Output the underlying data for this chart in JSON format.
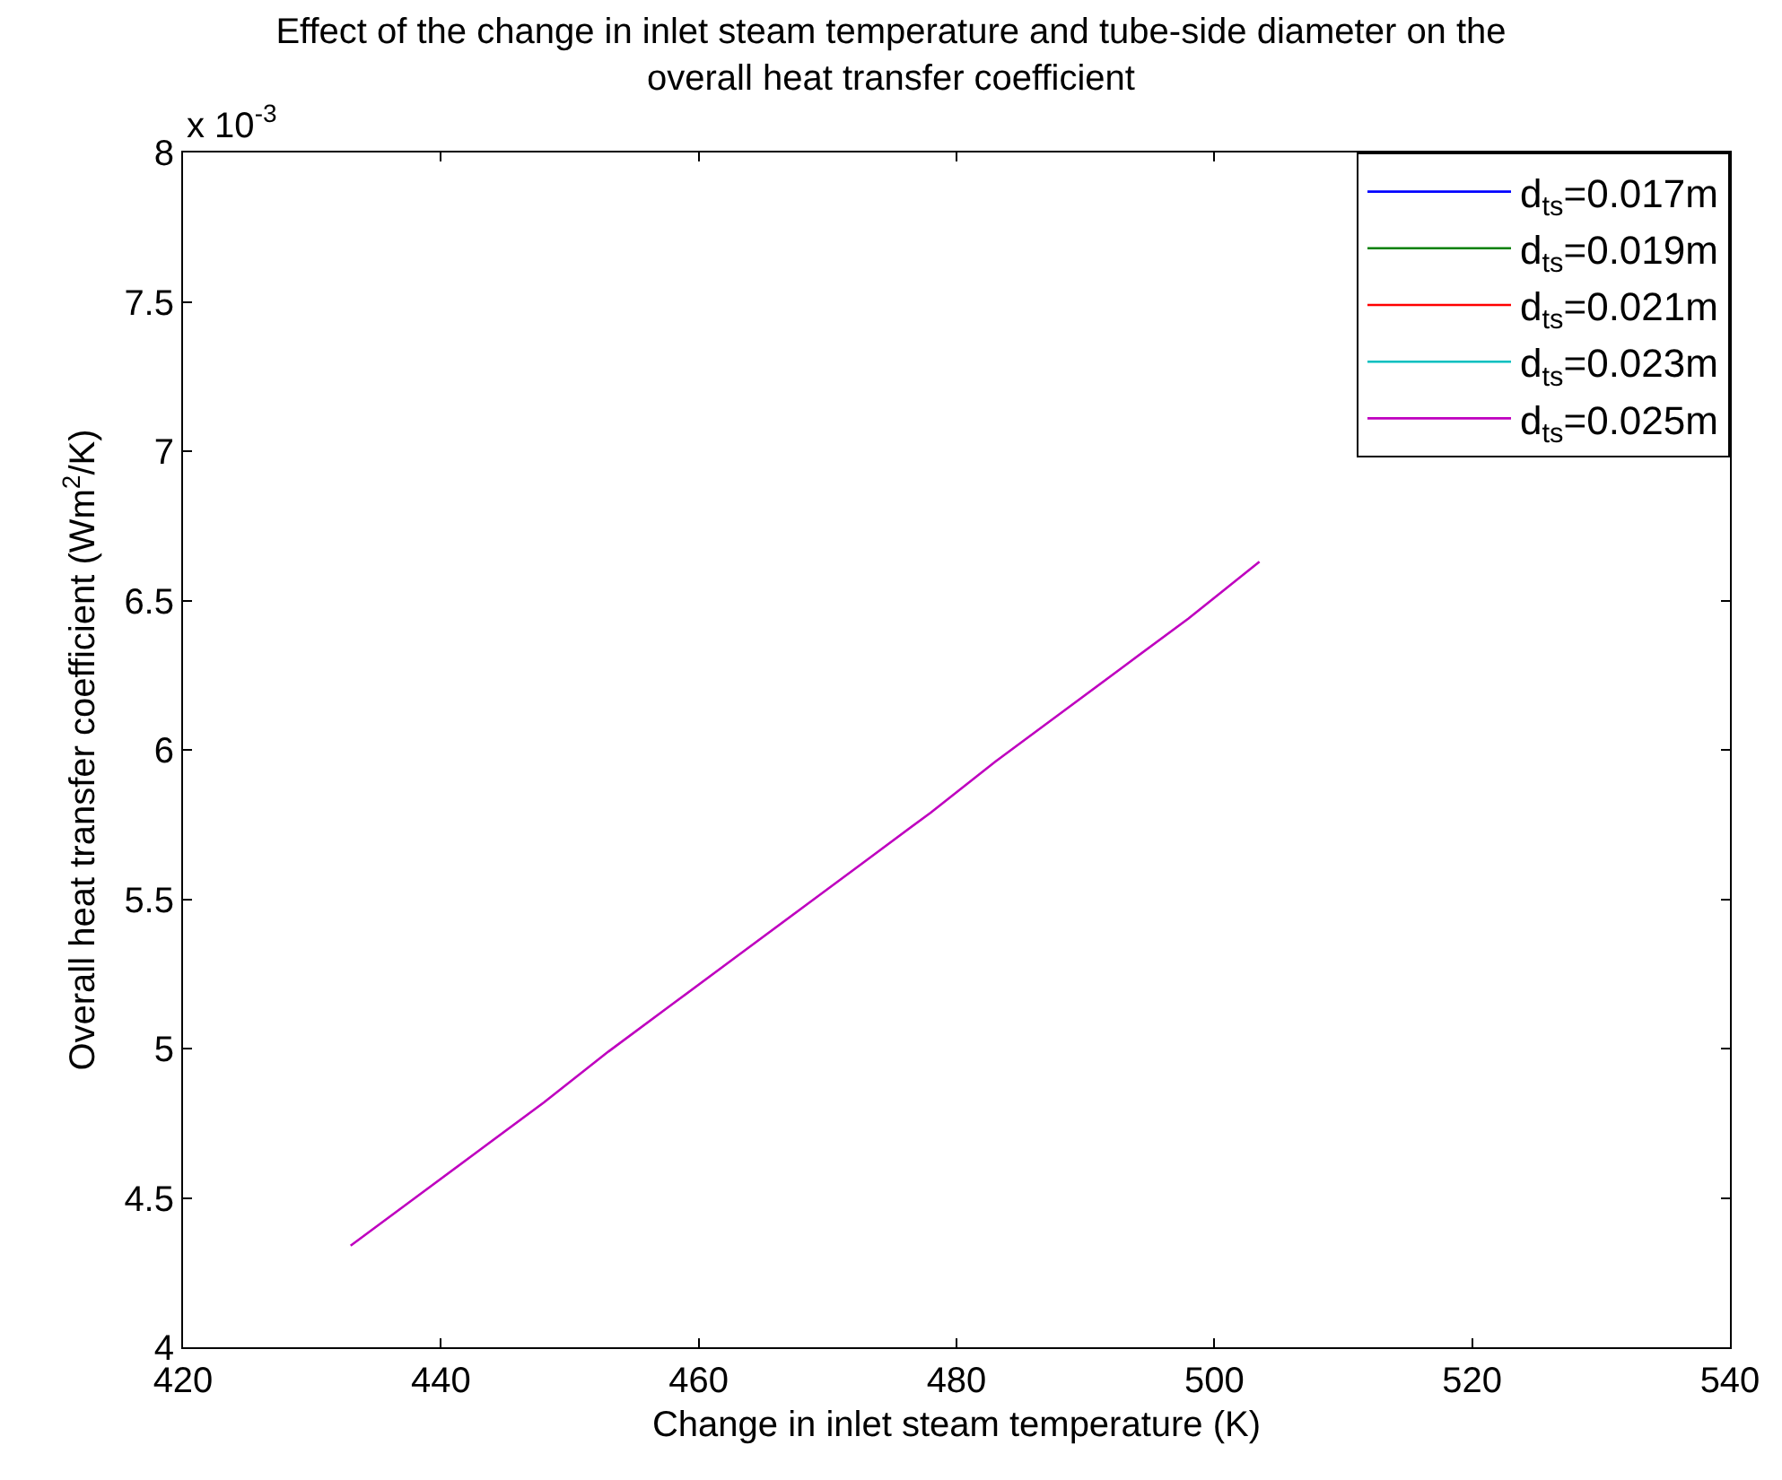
{
  "chart_data": {
    "type": "line",
    "title": "Effect of the change in inlet steam temperature and tube-side diameter on the overall heat transfer coefficient",
    "xlabel": "Change in inlet steam temperature (K)",
    "ylabel": "Overall heat transfer coefficient (Wm$^{2}$/K)",
    "annotations": [
      "x 10$^{-3}$"
    ],
    "x": [
      433,
      438,
      443,
      448,
      453,
      458,
      463,
      468,
      473,
      478,
      483,
      488,
      493,
      498,
      503.5
    ],
    "series": [
      {
        "name": "d$_{ts}$=0.017m",
        "color": "#0000ff",
        "values": [
          null,
          null,
          null,
          null,
          null,
          null,
          null,
          null,
          null,
          null,
          null,
          null,
          null,
          null,
          null
        ]
      },
      {
        "name": "d$_{ts}$=0.019m",
        "color": "#008000",
        "values": [
          null,
          null,
          null,
          null,
          null,
          null,
          null,
          null,
          null,
          null,
          null,
          null,
          null,
          null,
          null
        ]
      },
      {
        "name": "d$_{ts}$=0.021m",
        "color": "#ff0000",
        "values": [
          null,
          null,
          null,
          null,
          null,
          null,
          null,
          null,
          null,
          null,
          null,
          null,
          null,
          null,
          null
        ]
      },
      {
        "name": "d$_{ts}$=0.023m",
        "color": "#00bfbf",
        "values": [
          null,
          null,
          null,
          null,
          null,
          null,
          null,
          null,
          null,
          null,
          null,
          null,
          null,
          null,
          null
        ]
      },
      {
        "name": "d$_{ts}$=0.025m",
        "color": "#bf00bf",
        "values": [
          4.34,
          4.5,
          4.66,
          4.82,
          4.99,
          5.15,
          5.31,
          5.47,
          5.63,
          5.79,
          5.96,
          6.12,
          6.28,
          6.44,
          6.63
        ]
      }
    ],
    "xlim": [
      420,
      540
    ],
    "xticks": [
      420,
      440,
      460,
      480,
      500,
      520,
      540
    ],
    "ylim": [
      4,
      8
    ],
    "yticks": [
      4,
      4.5,
      5,
      5.5,
      6,
      6.5,
      7,
      7.5,
      8
    ],
    "grid": false,
    "legend": "top right",
    "line_style": "solid",
    "marker": "none"
  }
}
